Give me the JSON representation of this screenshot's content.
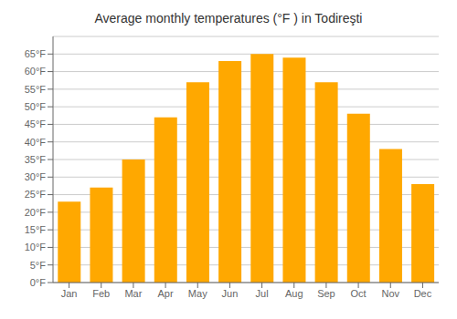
{
  "chart_data": {
    "type": "bar",
    "title": "Average monthly temperatures (°F ) in Todireşti",
    "categories": [
      "Jan",
      "Feb",
      "Mar",
      "Apr",
      "May",
      "Jun",
      "Jul",
      "Aug",
      "Sep",
      "Oct",
      "Nov",
      "Dec"
    ],
    "values": [
      23,
      27,
      35,
      47,
      57,
      63,
      65,
      64,
      57,
      48,
      38,
      28
    ],
    "color": "#FFA800",
    "ylim": [
      0,
      70
    ],
    "yticks": [
      {
        "value": 0,
        "label": "0°F"
      },
      {
        "value": 5,
        "label": "5°F"
      },
      {
        "value": 10,
        "label": "10°F"
      },
      {
        "value": 15,
        "label": "15°F"
      },
      {
        "value": 20,
        "label": "20°F"
      },
      {
        "value": 25,
        "label": "25°F"
      },
      {
        "value": 30,
        "label": "30°F"
      },
      {
        "value": 35,
        "label": "35°F"
      },
      {
        "value": 40,
        "label": "40°F"
      },
      {
        "value": 45,
        "label": "45°F"
      },
      {
        "value": 50,
        "label": "50°F"
      },
      {
        "value": 55,
        "label": "55°F"
      },
      {
        "value": 60,
        "label": "60°F"
      },
      {
        "value": 65,
        "label": "65°F"
      }
    ],
    "grid": true
  }
}
